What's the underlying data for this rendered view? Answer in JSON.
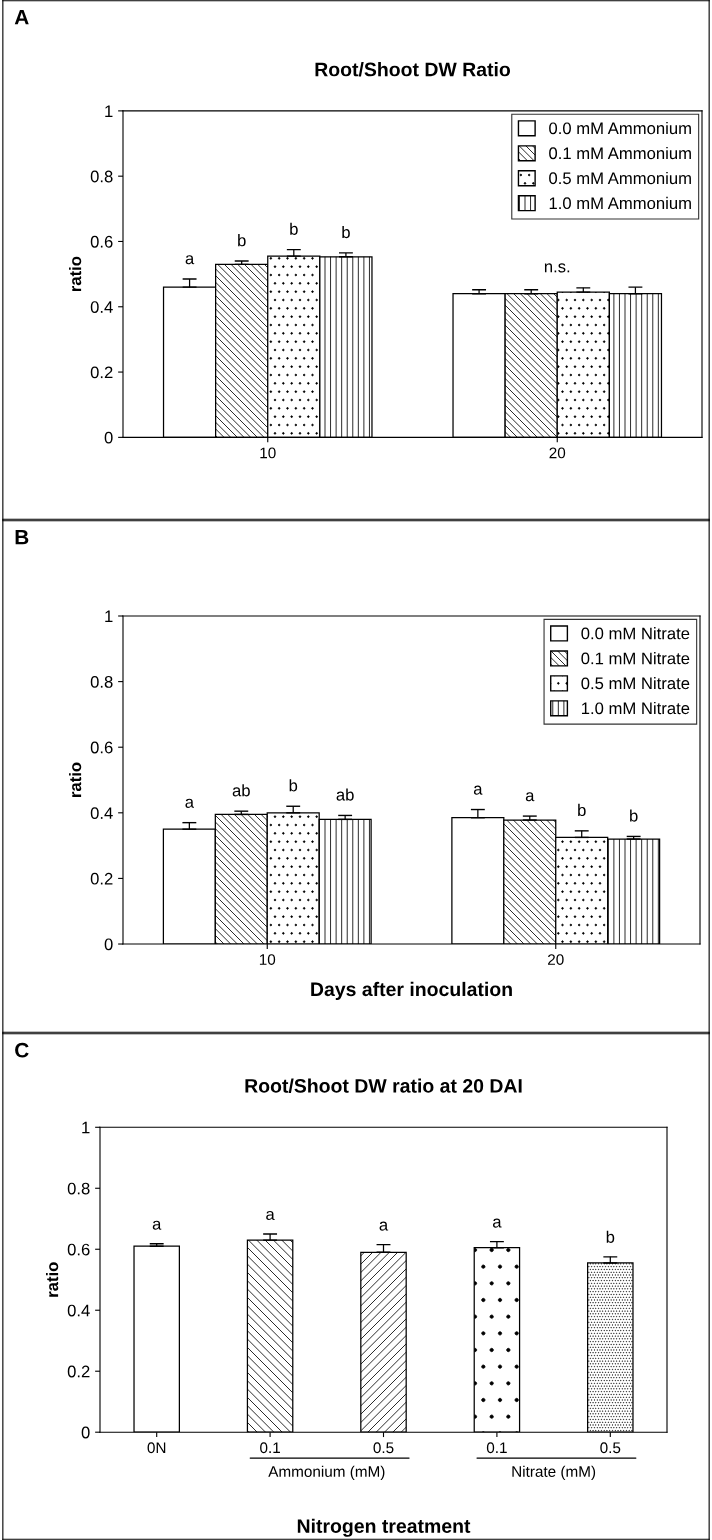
{
  "chart_data": [
    {
      "type": "bar",
      "title": "Root/Shoot DW Ratio",
      "ylabel": "ratio",
      "categories": [
        "10",
        "20"
      ],
      "ylim": [
        0,
        1
      ],
      "yticks": [
        0,
        0.2,
        0.4,
        0.6,
        0.8,
        1
      ],
      "grid": false,
      "legend": "top right",
      "annotations": [
        "A",
        "n.s."
      ],
      "series": [
        {
          "name": "0.0 mM Ammonium",
          "color": "#ffffff",
          "values": [
            0.46,
            0.44
          ],
          "errors": [
            0.025,
            0.012
          ],
          "value_labels": [
            "a",
            null
          ]
        },
        {
          "name": "0.1 mM Ammonium",
          "color": "#000000",
          "values": [
            0.53,
            0.44
          ],
          "errors": [
            0.01,
            0.012
          ],
          "value_labels": [
            "b",
            null
          ]
        },
        {
          "name": "0.5 mM Ammonium",
          "color": "#000000",
          "values": [
            0.555,
            0.445
          ],
          "errors": [
            0.02,
            0.013
          ],
          "value_labels": [
            "b",
            null
          ]
        },
        {
          "name": "1.0 mM Ammonium",
          "color": "#000000",
          "values": [
            0.553,
            0.44
          ],
          "errors": [
            0.012,
            0.02
          ],
          "value_labels": [
            "b",
            null
          ]
        }
      ]
    },
    {
      "type": "bar",
      "xlabel": "Days after inoculation",
      "ylabel": "ratio",
      "categories": [
        "10",
        "20"
      ],
      "ylim": [
        0,
        1
      ],
      "yticks": [
        0,
        0.2,
        0.4,
        0.6,
        0.8,
        1
      ],
      "grid": false,
      "legend": "top right",
      "annotations": [
        "B"
      ],
      "series": [
        {
          "name": "0.0 mM Nitrate",
          "color": "#ffffff",
          "values": [
            0.35,
            0.385
          ],
          "errors": [
            0.02,
            0.025
          ],
          "value_labels": [
            "a",
            "a"
          ]
        },
        {
          "name": "0.1 mM Nitrate",
          "color": "#000000",
          "values": [
            0.395,
            0.378
          ],
          "errors": [
            0.01,
            0.012
          ],
          "value_labels": [
            "ab",
            "a"
          ]
        },
        {
          "name": "0.5 mM Nitrate",
          "color": "#000000",
          "values": [
            0.4,
            0.325
          ],
          "errors": [
            0.02,
            0.02
          ],
          "value_labels": [
            "b",
            "b"
          ]
        },
        {
          "name": "1.0 mM Nitrate",
          "color": "#000000",
          "values": [
            0.38,
            0.32
          ],
          "errors": [
            0.012,
            0.008
          ],
          "value_labels": [
            "ab",
            "b"
          ]
        }
      ]
    },
    {
      "type": "bar",
      "title": "Root/Shoot DW ratio at 20 DAI",
      "xlabel": "Nitrogen treatment",
      "ylabel": "ratio",
      "categories": [
        "0N",
        "0.1",
        "0.5",
        "0.1",
        "0.5"
      ],
      "ylim": [
        0,
        1
      ],
      "yticks": [
        0,
        0.2,
        0.4,
        0.6,
        0.8,
        1
      ],
      "grid": false,
      "annotations": [
        "C",
        "Ammonium (mM)",
        "Nitrate (mM)"
      ],
      "series": [
        {
          "colors": [
            "#ffffff",
            "#000000",
            "#000000",
            "#000000",
            "#000000"
          ],
          "values": [
            0.61,
            0.63,
            0.59,
            0.605,
            0.555
          ],
          "errors": [
            0.008,
            0.02,
            0.025,
            0.02,
            0.02
          ],
          "value_labels": [
            "a",
            "a",
            "a",
            "a",
            "b"
          ]
        }
      ]
    }
  ]
}
